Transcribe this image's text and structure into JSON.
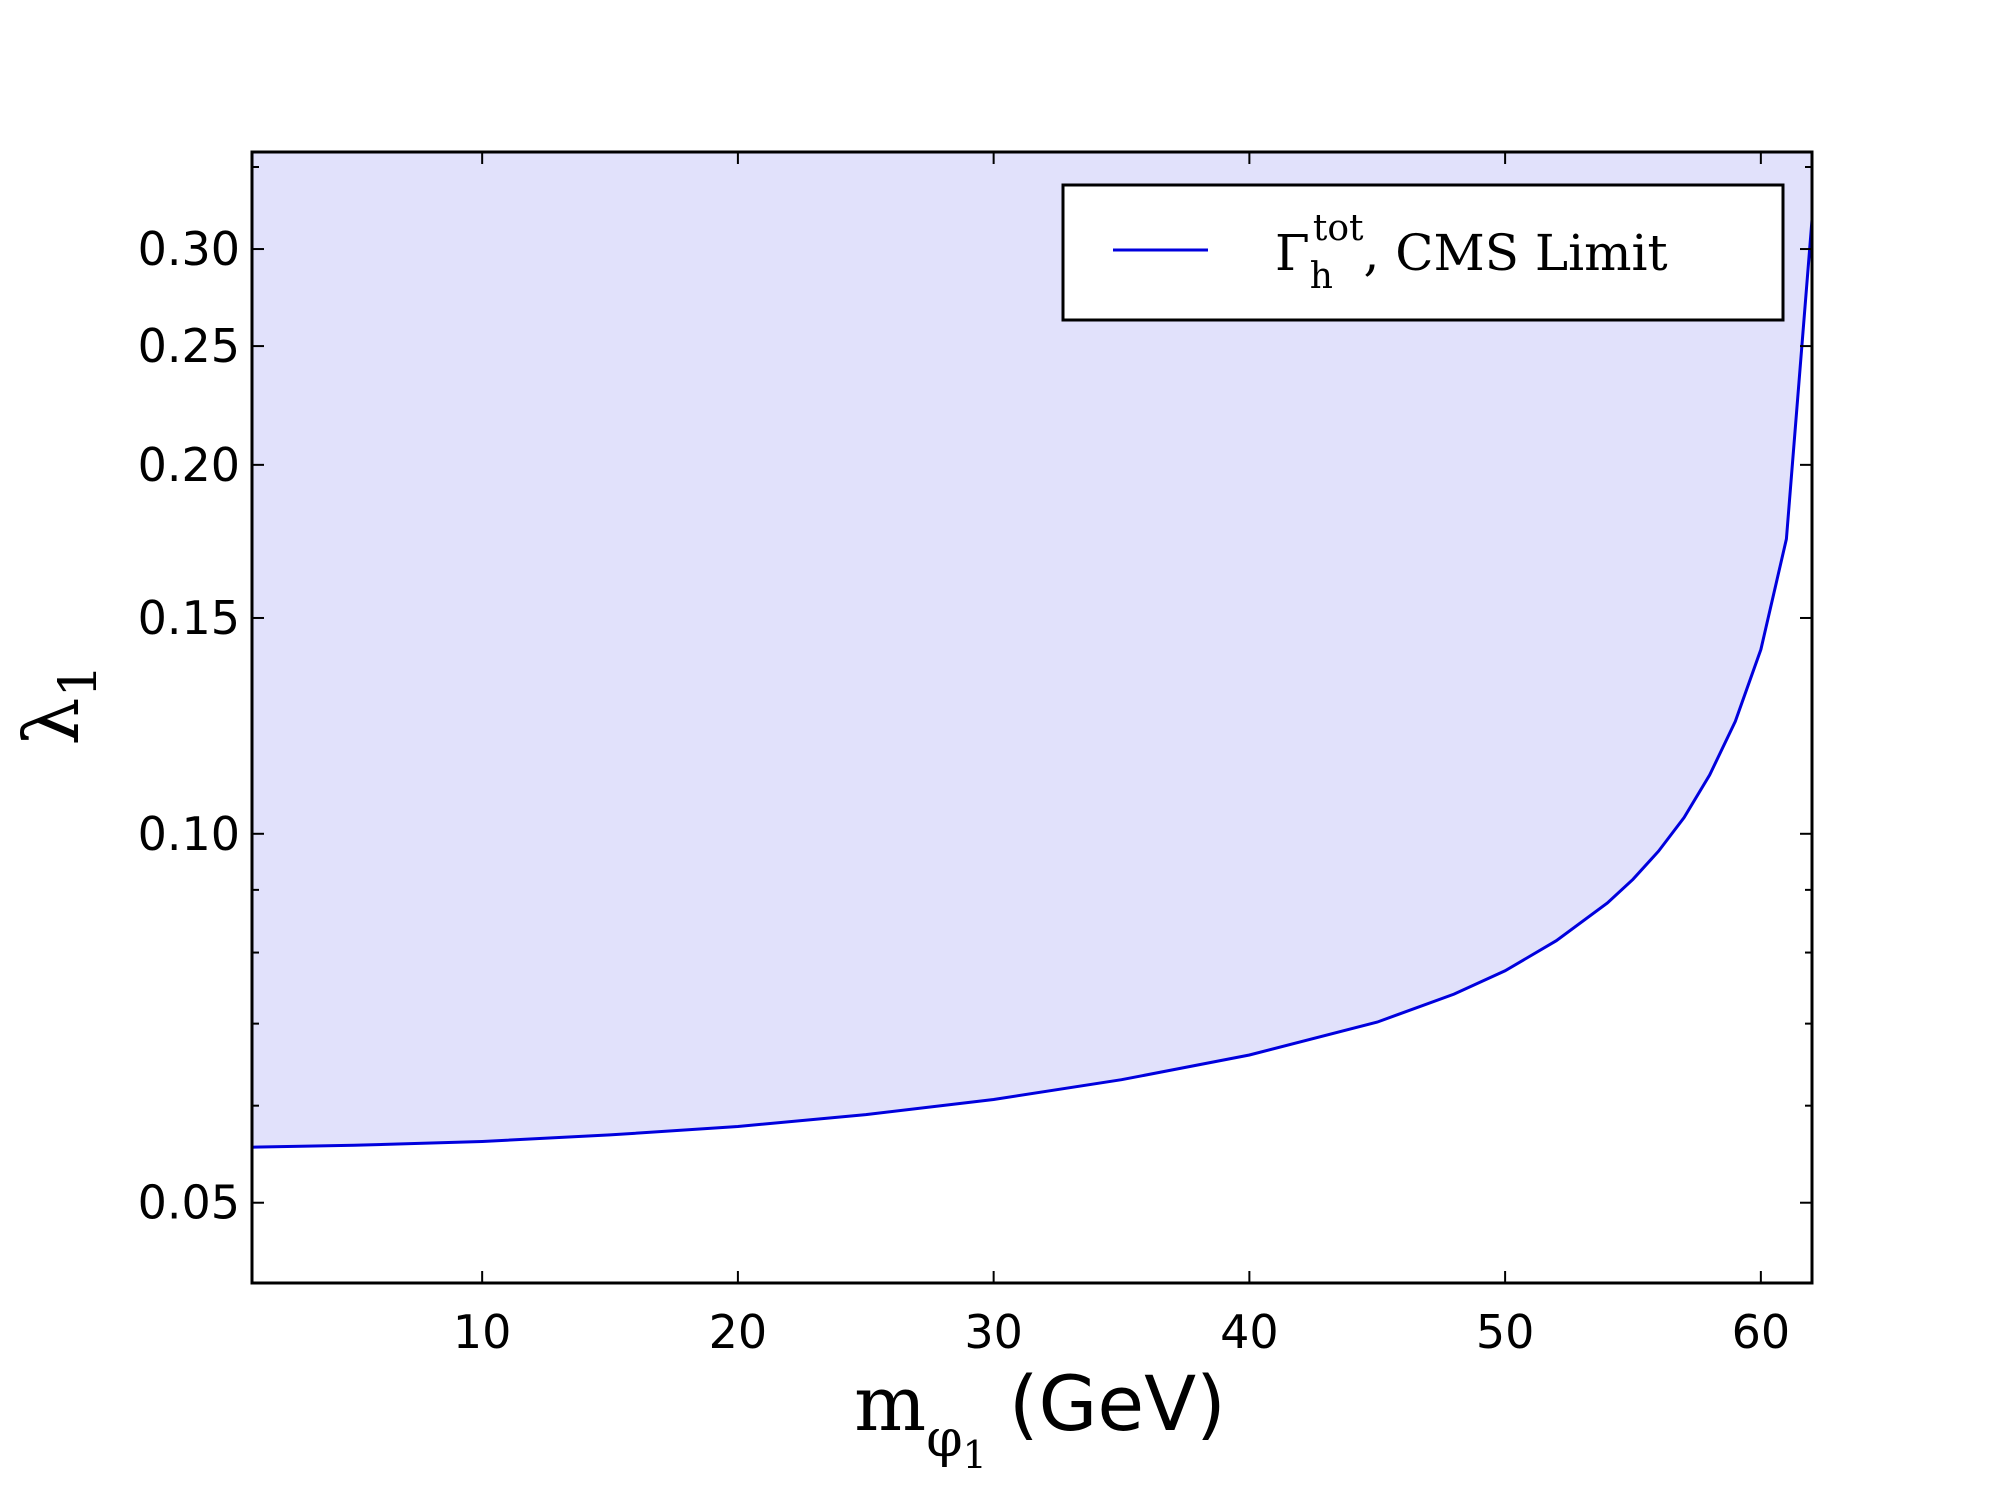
{
  "chart_data": {
    "type": "area",
    "xlabel": {
      "main": "m",
      "sub_symbol": "φ",
      "sub_index": "1",
      "unit": "(GeV)"
    },
    "ylabel": {
      "main": "λ",
      "sub": "1"
    },
    "xlim": [
      1,
      62
    ],
    "ylim": [
      0.043,
      0.36
    ],
    "yscale": "log",
    "grid": false,
    "legend_position": "top-right",
    "x_ticks": [
      10,
      20,
      30,
      40,
      50,
      60
    ],
    "x_tick_labels": [
      "10",
      "20",
      "30",
      "40",
      "50",
      "60"
    ],
    "y_ticks": [
      0.05,
      0.1,
      0.15,
      0.2,
      0.25,
      0.3
    ],
    "y_tick_labels": [
      "0.05",
      "0.10",
      "0.15",
      "0.20",
      "0.25",
      "0.30"
    ],
    "y_minor_ticks": [
      0.06,
      0.07,
      0.08,
      0.09,
      0.35
    ],
    "series": [
      {
        "name": "Γ_h^tot, CMS Limit",
        "legend": {
          "symbol": "Γ",
          "sub": "h",
          "sup": "tot",
          "rest": ", CMS Limit"
        },
        "color": "#0000dd",
        "fill_color": "#e1e1fb",
        "fill": "above",
        "x": [
          1,
          5,
          10,
          15,
          20,
          25,
          30,
          35,
          40,
          45,
          48,
          50,
          52,
          54,
          55,
          56,
          57,
          58,
          59,
          60,
          61,
          62
        ],
        "y": [
          0.0555,
          0.0557,
          0.0561,
          0.0568,
          0.0577,
          0.059,
          0.0607,
          0.063,
          0.066,
          0.0702,
          0.074,
          0.0773,
          0.0818,
          0.0878,
          0.0918,
          0.0968,
          0.1031,
          0.1117,
          0.1235,
          0.1414,
          0.174,
          0.317
        ]
      }
    ]
  }
}
